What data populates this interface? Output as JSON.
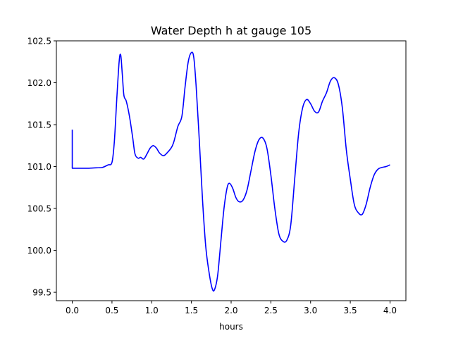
{
  "chart_data": {
    "type": "line",
    "title": "Water Depth h at gauge 105",
    "xlabel": "hours",
    "ylabel": "",
    "xlim": [
      -0.2,
      4.2
    ],
    "ylim": [
      99.4,
      102.5
    ],
    "xticks": [
      0.0,
      0.5,
      1.0,
      1.5,
      2.0,
      2.5,
      3.0,
      3.5,
      4.0
    ],
    "xtick_labels": [
      "0.0",
      "0.5",
      "1.0",
      "1.5",
      "2.0",
      "2.5",
      "3.0",
      "3.5",
      "4.0"
    ],
    "yticks": [
      99.5,
      100.0,
      100.5,
      101.0,
      101.5,
      102.0,
      102.5
    ],
    "ytick_labels": [
      "99.5",
      "100.0",
      "100.5",
      "101.0",
      "101.5",
      "102.0",
      "102.5"
    ],
    "grid": false,
    "legend": "none",
    "series": [
      {
        "name": "",
        "color": "#0000ff",
        "points": [
          [
            0.0,
            101.44
          ],
          [
            0.0,
            100.98
          ],
          [
            0.1,
            100.98
          ],
          [
            0.2,
            100.98
          ],
          [
            0.3,
            100.985
          ],
          [
            0.38,
            100.99
          ],
          [
            0.45,
            101.02
          ],
          [
            0.5,
            101.05
          ],
          [
            0.53,
            101.3
          ],
          [
            0.56,
            101.8
          ],
          [
            0.59,
            102.25
          ],
          [
            0.61,
            102.33
          ],
          [
            0.63,
            102.1
          ],
          [
            0.65,
            101.85
          ],
          [
            0.68,
            101.78
          ],
          [
            0.72,
            101.6
          ],
          [
            0.76,
            101.35
          ],
          [
            0.79,
            101.15
          ],
          [
            0.83,
            101.1
          ],
          [
            0.86,
            101.11
          ],
          [
            0.9,
            101.09
          ],
          [
            0.94,
            101.15
          ],
          [
            0.98,
            101.22
          ],
          [
            1.02,
            101.25
          ],
          [
            1.06,
            101.22
          ],
          [
            1.1,
            101.16
          ],
          [
            1.15,
            101.13
          ],
          [
            1.2,
            101.17
          ],
          [
            1.25,
            101.23
          ],
          [
            1.28,
            101.3
          ],
          [
            1.33,
            101.48
          ],
          [
            1.38,
            101.6
          ],
          [
            1.42,
            101.95
          ],
          [
            1.46,
            102.25
          ],
          [
            1.5,
            102.36
          ],
          [
            1.53,
            102.3
          ],
          [
            1.56,
            101.95
          ],
          [
            1.6,
            101.3
          ],
          [
            1.64,
            100.6
          ],
          [
            1.68,
            100.05
          ],
          [
            1.72,
            99.75
          ],
          [
            1.76,
            99.55
          ],
          [
            1.79,
            99.53
          ],
          [
            1.83,
            99.7
          ],
          [
            1.87,
            100.1
          ],
          [
            1.91,
            100.5
          ],
          [
            1.95,
            100.75
          ],
          [
            1.98,
            100.8
          ],
          [
            2.02,
            100.74
          ],
          [
            2.06,
            100.63
          ],
          [
            2.1,
            100.58
          ],
          [
            2.15,
            100.6
          ],
          [
            2.2,
            100.72
          ],
          [
            2.25,
            100.95
          ],
          [
            2.3,
            101.18
          ],
          [
            2.35,
            101.32
          ],
          [
            2.4,
            101.34
          ],
          [
            2.45,
            101.22
          ],
          [
            2.5,
            100.9
          ],
          [
            2.55,
            100.5
          ],
          [
            2.6,
            100.2
          ],
          [
            2.65,
            100.11
          ],
          [
            2.7,
            100.12
          ],
          [
            2.75,
            100.3
          ],
          [
            2.8,
            100.85
          ],
          [
            2.85,
            101.4
          ],
          [
            2.9,
            101.7
          ],
          [
            2.95,
            101.8
          ],
          [
            3.0,
            101.75
          ],
          [
            3.05,
            101.66
          ],
          [
            3.1,
            101.65
          ],
          [
            3.15,
            101.78
          ],
          [
            3.2,
            101.88
          ],
          [
            3.25,
            102.02
          ],
          [
            3.3,
            102.06
          ],
          [
            3.35,
            101.98
          ],
          [
            3.4,
            101.7
          ],
          [
            3.45,
            101.2
          ],
          [
            3.5,
            100.85
          ],
          [
            3.55,
            100.55
          ],
          [
            3.6,
            100.45
          ],
          [
            3.65,
            100.43
          ],
          [
            3.7,
            100.55
          ],
          [
            3.75,
            100.75
          ],
          [
            3.8,
            100.9
          ],
          [
            3.85,
            100.97
          ],
          [
            3.9,
            100.99
          ],
          [
            3.95,
            101.0
          ],
          [
            4.0,
            101.02
          ]
        ]
      }
    ]
  }
}
